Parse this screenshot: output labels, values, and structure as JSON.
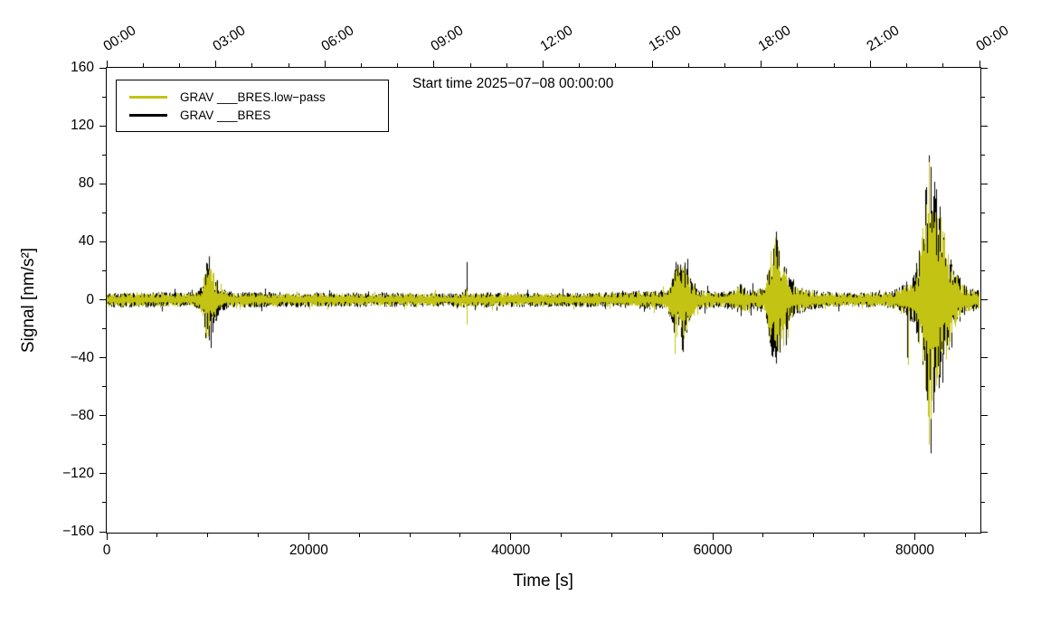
{
  "chart_data": {
    "type": "line",
    "title": "Start time 2025−07−08 00:00:00",
    "xlabel": "Time [s]",
    "ylabel": "Signal [nm/s²]",
    "xlim": [
      0,
      86400
    ],
    "ylim": [
      -160,
      160
    ],
    "grid": false,
    "x_axis": {
      "major_ticks": [
        0,
        20000,
        40000,
        60000,
        80000
      ],
      "major_labels": [
        "0",
        "20000",
        "40000",
        "60000",
        "80000"
      ],
      "minor_step": 5000
    },
    "y_axis": {
      "major_ticks": [
        160,
        120,
        80,
        40,
        0,
        -40,
        -80,
        -120,
        -160
      ],
      "major_labels": [
        "160",
        "120",
        "80",
        "40",
        "0",
        "−40",
        "−80",
        "−120",
        "−160"
      ],
      "minor_step": 20
    },
    "top_axis": {
      "ticks_s": [
        0,
        10800,
        21600,
        32400,
        43200,
        54000,
        64800,
        75600,
        86400
      ],
      "labels": [
        "00:00",
        "03:00",
        "06:00",
        "09:00",
        "12:00",
        "15:00",
        "18:00",
        "21:00",
        "00:00"
      ],
      "minor_step": 3600
    },
    "legend": {
      "position": "top-left",
      "entries": [
        {
          "label": "GRAV ___BRES.low−pass",
          "color": "#c3c313"
        },
        {
          "label": "GRAV ___BRES",
          "color": "#000000"
        }
      ]
    },
    "envelope": [
      [
        0,
        4.5
      ],
      [
        8500,
        4.5
      ],
      [
        9300,
        7
      ],
      [
        9900,
        26
      ],
      [
        10400,
        22
      ],
      [
        11200,
        8
      ],
      [
        12000,
        5
      ],
      [
        15000,
        4.5
      ],
      [
        30000,
        4.2
      ],
      [
        35000,
        4.2
      ],
      [
        35500,
        6
      ],
      [
        35800,
        4.5
      ],
      [
        45000,
        4.2
      ],
      [
        50000,
        4.5
      ],
      [
        53000,
        5.5
      ],
      [
        55500,
        6
      ],
      [
        56300,
        24
      ],
      [
        57000,
        30
      ],
      [
        57700,
        14
      ],
      [
        58800,
        6
      ],
      [
        60500,
        4.5
      ],
      [
        62000,
        6
      ],
      [
        62800,
        10
      ],
      [
        63600,
        6
      ],
      [
        65200,
        8
      ],
      [
        65900,
        38
      ],
      [
        66300,
        43
      ],
      [
        67000,
        22
      ],
      [
        68000,
        10
      ],
      [
        69500,
        6
      ],
      [
        72000,
        4.5
      ],
      [
        77000,
        4.5
      ],
      [
        78500,
        7
      ],
      [
        79300,
        12
      ],
      [
        80000,
        16
      ],
      [
        80700,
        40
      ],
      [
        81200,
        75
      ],
      [
        81500,
        88
      ],
      [
        82000,
        70
      ],
      [
        82600,
        55
      ],
      [
        83200,
        38
      ],
      [
        84000,
        18
      ],
      [
        84800,
        10
      ],
      [
        85600,
        7
      ],
      [
        86400,
        6
      ]
    ],
    "series": [
      {
        "name": "GRAV ___BRES",
        "color": "#000000",
        "amp_scale": 1.12,
        "seed": 7,
        "spikes": [
          [
            10150,
            30,
            28
          ],
          [
            35600,
            26,
            8
          ],
          [
            57050,
            20,
            36
          ],
          [
            66250,
            47,
            44
          ],
          [
            79250,
            10,
            40
          ],
          [
            81600,
            88,
            106
          ]
        ]
      },
      {
        "name": "GRAV ___BRES.low−pass",
        "color": "#c3c313",
        "amp_scale": 1.0,
        "seed": 13,
        "spikes": [
          [
            35620,
            6,
            17
          ],
          [
            79320,
            8,
            45
          ],
          [
            81420,
            95,
            100
          ]
        ]
      }
    ]
  }
}
